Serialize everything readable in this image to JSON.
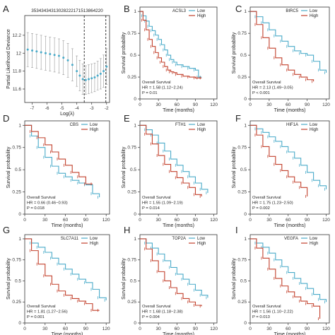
{
  "colors": {
    "low": "#4aabc9",
    "high": "#c2402c",
    "lambda_line": "#4aabc9",
    "axis": "#333333"
  },
  "chart_data": [
    {
      "panel": "A",
      "type": "line",
      "top_labels": "35343434313028222171513864220",
      "xlabel": "Log(λ)",
      "ylabel": "Partial Likelihood Deviance",
      "xlim": [
        -7.5,
        -1.8
      ],
      "ylim": [
        11.45,
        12.42
      ],
      "xticks": [
        -7,
        -6,
        -5,
        -4,
        -3,
        -2
      ],
      "yticks": [
        11.6,
        11.8,
        12.0,
        12.2
      ],
      "vlines": [
        -3.5,
        -2.05
      ],
      "x": [
        -7.3,
        -7.0,
        -6.7,
        -6.4,
        -6.1,
        -5.8,
        -5.5,
        -5.2,
        -4.9,
        -4.6,
        -4.3,
        -4.0,
        -3.8,
        -3.6,
        -3.4,
        -3.2,
        -3.0,
        -2.8,
        -2.6,
        -2.4,
        -2.2,
        -2.0
      ],
      "y": [
        12.04,
        12.03,
        12.02,
        12.01,
        12.0,
        11.99,
        11.98,
        11.97,
        11.95,
        11.92,
        11.87,
        11.8,
        11.75,
        11.71,
        11.7,
        11.71,
        11.72,
        11.73,
        11.75,
        11.77,
        11.8,
        11.85
      ],
      "err": [
        0.19,
        0.19,
        0.19,
        0.19,
        0.19,
        0.19,
        0.19,
        0.19,
        0.19,
        0.19,
        0.18,
        0.17,
        0.17,
        0.17,
        0.16,
        0.16,
        0.16,
        0.16,
        0.16,
        0.17,
        0.18,
        0.2
      ]
    },
    {
      "panel": "B",
      "type": "line",
      "gene": "ACSL3",
      "stats": [
        "Overall Survival",
        "HR = 1.58 (1.12−2.24)",
        "P = 0.01"
      ],
      "series": [
        {
          "name": "Low",
          "x": [
            0,
            5,
            10,
            15,
            20,
            25,
            30,
            35,
            40,
            45,
            50,
            55,
            60,
            70,
            80,
            90,
            95,
            100
          ],
          "y": [
            1.0,
            0.95,
            0.89,
            0.83,
            0.78,
            0.73,
            0.68,
            0.62,
            0.56,
            0.5,
            0.45,
            0.42,
            0.39,
            0.37,
            0.35,
            0.33,
            0.25,
            0.25
          ]
        },
        {
          "name": "High",
          "x": [
            0,
            5,
            10,
            15,
            20,
            25,
            30,
            35,
            40,
            45,
            50,
            55,
            60,
            70,
            80,
            90,
            95,
            100
          ],
          "y": [
            1.0,
            0.9,
            0.79,
            0.68,
            0.6,
            0.53,
            0.47,
            0.42,
            0.37,
            0.33,
            0.31,
            0.3,
            0.28,
            0.26,
            0.25,
            0.24,
            0.24,
            0.24
          ]
        }
      ],
      "xlabel": "Time (months)",
      "ylabel": "Survival probability",
      "xticks": [
        0,
        30,
        60,
        90,
        120
      ],
      "yticks": [
        0,
        0.25,
        0.5,
        0.75,
        1.0
      ],
      "xlim": [
        0,
        125
      ],
      "ylim": [
        0,
        1.05
      ]
    },
    {
      "panel": "C",
      "type": "line",
      "gene": "BIRC5",
      "stats": [
        "Overall Survival",
        "HR = 2.13 (1.49−3.05)",
        "P < 0.001"
      ],
      "series": [
        {
          "name": "Low",
          "x": [
            0,
            10,
            20,
            30,
            40,
            50,
            60,
            70,
            80,
            90,
            100,
            110,
            120
          ],
          "y": [
            1.0,
            0.94,
            0.87,
            0.79,
            0.72,
            0.66,
            0.6,
            0.55,
            0.52,
            0.5,
            0.43,
            0.33,
            0.3
          ]
        },
        {
          "name": "High",
          "x": [
            0,
            10,
            20,
            30,
            40,
            50,
            60,
            70,
            80,
            90,
            100
          ],
          "y": [
            1.0,
            0.85,
            0.7,
            0.58,
            0.47,
            0.39,
            0.33,
            0.28,
            0.25,
            0.22,
            0.2
          ]
        }
      ],
      "xlabel": "Time (months)",
      "ylabel": "Survival probability",
      "xticks": [
        0,
        30,
        60,
        90,
        120
      ],
      "yticks": [
        0,
        0.25,
        0.5,
        0.75,
        1.0
      ],
      "xlim": [
        0,
        125
      ],
      "ylim": [
        0,
        1.05
      ]
    },
    {
      "panel": "D",
      "type": "line",
      "gene": "CBS",
      "stats": [
        "Overall Survival",
        "HR = 0.66 (0.46−0.93)",
        "P = 0.018"
      ],
      "series": [
        {
          "name": "Low",
          "x": [
            0,
            10,
            20,
            30,
            40,
            50,
            60,
            70,
            80,
            90,
            100,
            110
          ],
          "y": [
            1.0,
            0.88,
            0.75,
            0.64,
            0.54,
            0.46,
            0.42,
            0.38,
            0.35,
            0.33,
            0.23,
            0.19
          ]
        },
        {
          "name": "High",
          "x": [
            0,
            10,
            20,
            30,
            40,
            50,
            60,
            70,
            80,
            90,
            100
          ],
          "y": [
            1.0,
            0.93,
            0.86,
            0.78,
            0.7,
            0.62,
            0.55,
            0.47,
            0.42,
            0.34,
            0.34
          ]
        }
      ],
      "xlabel": "Time (months)",
      "ylabel": "Survival probability",
      "xticks": [
        0,
        30,
        60,
        90,
        120
      ],
      "yticks": [
        0,
        0.25,
        0.5,
        0.75,
        1.0
      ],
      "xlim": [
        0,
        125
      ],
      "ylim": [
        0,
        1.05
      ]
    },
    {
      "panel": "E",
      "type": "line",
      "gene": "FTH1",
      "stats": [
        "Overall Survival",
        "HR = 1.55 (1.09−2.19)",
        "P = 0.014"
      ],
      "series": [
        {
          "name": "Low",
          "x": [
            0,
            10,
            20,
            30,
            40,
            50,
            60,
            70,
            80,
            90,
            100,
            110
          ],
          "y": [
            1.0,
            0.95,
            0.89,
            0.8,
            0.71,
            0.62,
            0.55,
            0.48,
            0.42,
            0.35,
            0.28,
            0.24
          ]
        },
        {
          "name": "High",
          "x": [
            0,
            10,
            20,
            30,
            40,
            50,
            60,
            70,
            80,
            90,
            100
          ],
          "y": [
            1.0,
            0.9,
            0.79,
            0.66,
            0.56,
            0.48,
            0.41,
            0.35,
            0.3,
            0.22,
            0.2
          ]
        }
      ],
      "xlabel": "Time (months)",
      "ylabel": "Survival probability",
      "xticks": [
        0,
        30,
        60,
        90,
        120
      ],
      "yticks": [
        0,
        0.25,
        0.5,
        0.75,
        1.0
      ],
      "xlim": [
        0,
        125
      ],
      "ylim": [
        0,
        1.05
      ]
    },
    {
      "panel": "F",
      "type": "line",
      "gene": "HIF1A",
      "stats": [
        "Overall Survival",
        "HR = 1.75 (1.23−2.50)",
        "P = 0.002"
      ],
      "series": [
        {
          "name": "Low",
          "x": [
            0,
            10,
            20,
            30,
            40,
            50,
            60,
            70,
            80,
            90,
            100,
            110,
            120
          ],
          "y": [
            1.0,
            0.96,
            0.92,
            0.87,
            0.82,
            0.76,
            0.7,
            0.63,
            0.55,
            0.47,
            0.38,
            0.32,
            0.28
          ]
        },
        {
          "name": "High",
          "x": [
            0,
            10,
            20,
            30,
            40,
            50,
            60,
            70,
            80,
            90
          ],
          "y": [
            1.0,
            0.89,
            0.76,
            0.65,
            0.56,
            0.49,
            0.42,
            0.36,
            0.3,
            0.2
          ]
        }
      ],
      "xlabel": "Time (months)",
      "ylabel": "Survival probability",
      "xticks": [
        0,
        30,
        60,
        90,
        120
      ],
      "yticks": [
        0,
        0.25,
        0.5,
        0.75,
        1.0
      ],
      "xlim": [
        0,
        125
      ],
      "ylim": [
        0,
        1.05
      ]
    },
    {
      "panel": "G",
      "type": "line",
      "gene": "SLC7A11",
      "stats": [
        "Overall Survival",
        "HR = 1.81 (1.27−2.56)",
        "P = 0.001"
      ],
      "series": [
        {
          "name": "Low",
          "x": [
            0,
            10,
            20,
            30,
            40,
            50,
            60,
            70,
            80,
            90,
            100,
            110,
            120
          ],
          "y": [
            1.0,
            0.95,
            0.9,
            0.84,
            0.77,
            0.7,
            0.64,
            0.58,
            0.52,
            0.48,
            0.4,
            0.3,
            0.27
          ]
        },
        {
          "name": "High",
          "x": [
            0,
            10,
            20,
            30,
            40,
            50,
            60,
            70,
            80,
            90,
            100,
            110
          ],
          "y": [
            1.0,
            0.86,
            0.7,
            0.56,
            0.46,
            0.38,
            0.33,
            0.29,
            0.26,
            0.23,
            0.15,
            0.15
          ]
        }
      ],
      "xlabel": "Time (months)",
      "ylabel": "Survival probability",
      "xticks": [
        0,
        30,
        60,
        90,
        120
      ],
      "yticks": [
        0,
        0.25,
        0.5,
        0.75,
        1.0
      ],
      "xlim": [
        0,
        125
      ],
      "ylim": [
        0,
        1.05
      ]
    },
    {
      "panel": "H",
      "type": "line",
      "gene": "TOP2A",
      "stats": [
        "Overall Survival",
        "HR = 1.68 (1.18−2.38)",
        "P = 0.004"
      ],
      "series": [
        {
          "name": "Low",
          "x": [
            0,
            10,
            20,
            30,
            40,
            50,
            60,
            70,
            80,
            90,
            100,
            110
          ],
          "y": [
            1.0,
            0.95,
            0.89,
            0.82,
            0.74,
            0.66,
            0.58,
            0.52,
            0.46,
            0.39,
            0.33,
            0.3
          ]
        },
        {
          "name": "High",
          "x": [
            0,
            10,
            20,
            30,
            40,
            50,
            60,
            70,
            80,
            90,
            100
          ],
          "y": [
            1.0,
            0.88,
            0.74,
            0.61,
            0.5,
            0.42,
            0.35,
            0.29,
            0.25,
            0.21,
            0.2
          ]
        }
      ],
      "xlabel": "Time (months)",
      "ylabel": "Survival probability",
      "xticks": [
        0,
        30,
        60,
        90,
        120
      ],
      "yticks": [
        0,
        0.25,
        0.5,
        0.75,
        1.0
      ],
      "xlim": [
        0,
        125
      ],
      "ylim": [
        0,
        1.05
      ]
    },
    {
      "panel": "I",
      "type": "line",
      "gene": "VEGFA",
      "stats": [
        "Overall Survival",
        "HR = 1.56 (1.10−2.22)",
        "P = 0.013"
      ],
      "series": [
        {
          "name": "Low",
          "x": [
            0,
            10,
            20,
            30,
            40,
            50,
            60,
            70,
            80,
            90,
            100,
            110,
            120
          ],
          "y": [
            1.0,
            0.95,
            0.9,
            0.83,
            0.75,
            0.67,
            0.6,
            0.53,
            0.47,
            0.41,
            0.34,
            0.28,
            0.25
          ]
        },
        {
          "name": "High",
          "x": [
            0,
            10,
            20,
            30,
            40,
            50,
            60,
            70,
            80,
            90,
            100,
            110
          ],
          "y": [
            1.0,
            0.89,
            0.77,
            0.64,
            0.53,
            0.44,
            0.37,
            0.31,
            0.26,
            0.23,
            0.2,
            0.05
          ]
        }
      ],
      "xlabel": "Time (months)",
      "ylabel": "Survival probability",
      "xticks": [
        0,
        30,
        60,
        90,
        120
      ],
      "yticks": [
        0,
        0.25,
        0.5,
        0.75,
        1.0
      ],
      "xlim": [
        0,
        125
      ],
      "ylim": [
        0,
        1.05
      ]
    }
  ]
}
